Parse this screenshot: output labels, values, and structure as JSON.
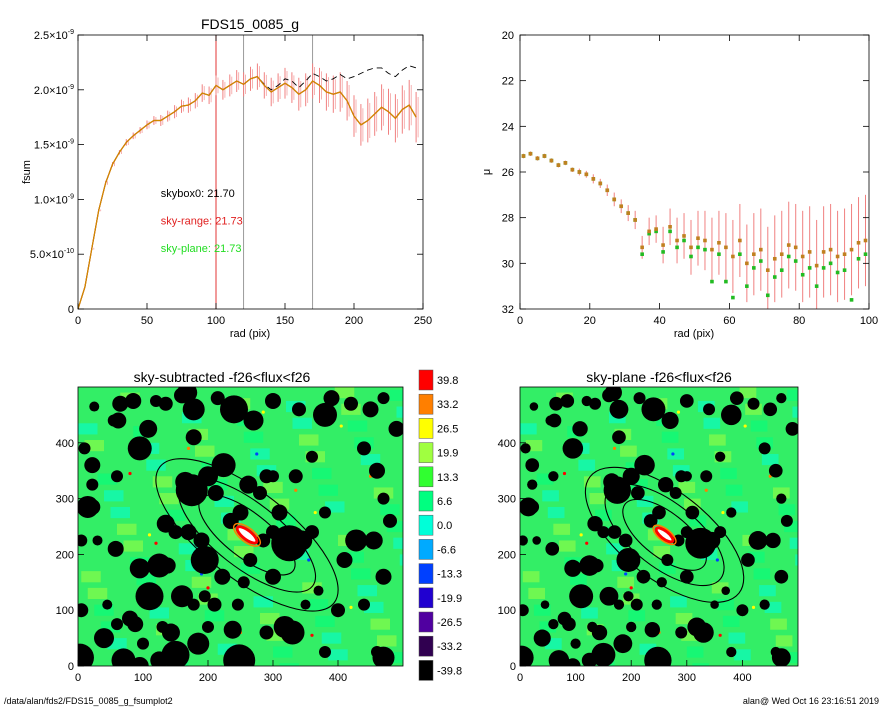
{
  "footer": {
    "path": "/data/alan/fds2/FDS15_0085_g_fsumplot2",
    "stamp": "alan@  Wed Oct 16 23:16:51 2019"
  },
  "chart_data": [
    {
      "type": "line",
      "panel": "fsum",
      "title": "FDS15_0085_g",
      "xlabel": "rad (pix)",
      "ylabel": "fsum",
      "xlim": [
        0,
        250
      ],
      "ylim": [
        0,
        2.5e-09
      ],
      "x_ticks": [
        "0",
        "50",
        "100",
        "150",
        "200",
        "250"
      ],
      "y_ticks": [
        {
          "v": 0,
          "m": "0",
          "e": ""
        },
        {
          "v": 5e-10,
          "m": "5.0×10",
          "e": "-10"
        },
        {
          "v": 1e-09,
          "m": "1.0×10",
          "e": "-9"
        },
        {
          "v": 1.5e-09,
          "m": "1.5×10",
          "e": "-9"
        },
        {
          "v": 2e-09,
          "m": "2.0×10",
          "e": "-9"
        },
        {
          "v": 2.5e-09,
          "m": "2.5×10",
          "e": "-9"
        }
      ],
      "vlines": [
        {
          "x": 100,
          "color": "#e02020"
        },
        {
          "x": 120,
          "color": "#909090"
        },
        {
          "x": 170,
          "color": "#909090"
        }
      ],
      "annotations": [
        {
          "text": "skybox0: 21.70",
          "color": "#000000",
          "x": 60,
          "y": 1.02e-09
        },
        {
          "text": "sky-range: 21.73",
          "color": "#e02020",
          "x": 60,
          "y": 7.7e-10
        },
        {
          "text": "sky-plane: 21.73",
          "color": "#22dd22",
          "x": 60,
          "y": 5.2e-10
        }
      ],
      "series": [
        {
          "style": "dashed",
          "color": "#000000",
          "x": [
            0,
            5,
            10,
            15,
            20,
            25,
            30,
            35,
            40,
            45,
            50,
            55,
            60,
            65,
            70,
            75,
            80,
            85,
            90,
            95,
            100,
            105,
            110,
            115,
            120,
            125,
            130,
            135,
            140,
            145,
            150,
            155,
            160,
            165,
            170,
            175,
            180,
            185,
            190,
            195,
            200,
            205,
            210,
            215,
            220,
            225,
            230,
            235,
            240,
            245
          ],
          "y": [
            0,
            2e-10,
            5.5e-10,
            9e-10,
            1.15e-09,
            1.32e-09,
            1.43e-09,
            1.52e-09,
            1.58e-09,
            1.63e-09,
            1.68e-09,
            1.72e-09,
            1.72e-09,
            1.76e-09,
            1.8e-09,
            1.85e-09,
            1.86e-09,
            1.9e-09,
            1.97e-09,
            1.95e-09,
            2.04e-09,
            2e-09,
            2.04e-09,
            2.08e-09,
            2.05e-09,
            2.1e-09,
            2.12e-09,
            2.05e-09,
            2e-09,
            2.04e-09,
            2.1e-09,
            2.08e-09,
            2.02e-09,
            2.08e-09,
            2.15e-09,
            2.12e-09,
            2.08e-09,
            2.1e-09,
            2.14e-09,
            2.1e-09,
            2.12e-09,
            2.15e-09,
            2.18e-09,
            2.2e-09,
            2.2e-09,
            2.15e-09,
            2.12e-09,
            2.18e-09,
            2.22e-09,
            2.2e-09
          ]
        },
        {
          "style": "solid",
          "color": "#cc2200",
          "x": [
            0,
            5,
            10,
            15,
            20,
            25,
            30,
            35,
            40,
            45,
            50,
            55,
            60,
            65,
            70,
            75,
            80,
            85,
            90,
            95,
            100,
            105,
            110,
            115,
            120,
            125,
            130,
            135,
            140,
            145,
            150,
            155,
            160,
            165,
            170,
            175,
            180,
            185,
            190,
            195,
            200,
            205,
            210,
            215,
            220,
            225,
            230,
            235,
            240,
            245
          ],
          "y": [
            0,
            2e-10,
            5.5e-10,
            9e-10,
            1.15e-09,
            1.32e-09,
            1.43e-09,
            1.52e-09,
            1.58e-09,
            1.63e-09,
            1.68e-09,
            1.72e-09,
            1.72e-09,
            1.76e-09,
            1.8e-09,
            1.85e-09,
            1.86e-09,
            1.9e-09,
            1.97e-09,
            1.95e-09,
            2.04e-09,
            2e-09,
            2.04e-09,
            2.08e-09,
            2.05e-09,
            2.1e-09,
            2.12e-09,
            2.04e-09,
            1.98e-09,
            2.02e-09,
            2.06e-09,
            2.02e-09,
            1.96e-09,
            2e-09,
            2.08e-09,
            2.04e-09,
            1.98e-09,
            1.96e-09,
            1.98e-09,
            1.9e-09,
            1.76e-09,
            1.68e-09,
            1.72e-09,
            1.78e-09,
            1.84e-09,
            1.8e-09,
            1.74e-09,
            1.82e-09,
            1.86e-09,
            1.75e-09
          ],
          "err": [
            0,
            0,
            1e-11,
            1e-11,
            2e-11,
            2e-11,
            2e-11,
            3e-11,
            3e-11,
            3e-11,
            4e-11,
            4e-11,
            5e-11,
            5e-11,
            6e-11,
            6e-11,
            7e-11,
            7e-11,
            8e-11,
            8e-11,
            9e-11,
            9e-11,
            1e-10,
            1e-10,
            1.1e-10,
            1.1e-10,
            1.2e-10,
            1.2e-10,
            1.3e-10,
            1.3e-10,
            1.4e-10,
            1.4e-10,
            1.5e-10,
            1.5e-10,
            1.6e-10,
            1.6e-10,
            1.7e-10,
            1.7e-10,
            1.8e-10,
            1.8e-10,
            1.9e-10,
            1.9e-10,
            2e-10,
            2e-10,
            2.1e-10,
            2.1e-10,
            2.2e-10,
            2.2e-10,
            2.3e-10,
            2.3e-10
          ]
        },
        {
          "style": "solid",
          "color": "#d08a00",
          "x": [
            0,
            5,
            10,
            15,
            20,
            25,
            30,
            35,
            40,
            45,
            50,
            55,
            60,
            65,
            70,
            75,
            80,
            85,
            90,
            95,
            100,
            105,
            110,
            115,
            120,
            125,
            130,
            135,
            140,
            145,
            150,
            155,
            160,
            165,
            170,
            175,
            180,
            185,
            190,
            195,
            200,
            205,
            210,
            215,
            220,
            225,
            230,
            235,
            240,
            245
          ],
          "y": [
            0,
            2e-10,
            5.5e-10,
            9e-10,
            1.15e-09,
            1.32e-09,
            1.43e-09,
            1.52e-09,
            1.58e-09,
            1.63e-09,
            1.68e-09,
            1.72e-09,
            1.72e-09,
            1.76e-09,
            1.8e-09,
            1.85e-09,
            1.86e-09,
            1.9e-09,
            1.97e-09,
            1.95e-09,
            2.04e-09,
            2e-09,
            2.04e-09,
            2.08e-09,
            2.05e-09,
            2.1e-09,
            2.12e-09,
            2.04e-09,
            1.98e-09,
            2.02e-09,
            2.06e-09,
            2.02e-09,
            1.96e-09,
            2e-09,
            2.08e-09,
            2.04e-09,
            1.98e-09,
            1.96e-09,
            1.98e-09,
            1.9e-09,
            1.76e-09,
            1.68e-09,
            1.72e-09,
            1.78e-09,
            1.84e-09,
            1.8e-09,
            1.74e-09,
            1.82e-09,
            1.86e-09,
            1.75e-09
          ]
        }
      ]
    },
    {
      "type": "scatter",
      "panel": "mu",
      "xlabel": "rad (pix)",
      "ylabel": "μ",
      "xlim": [
        0,
        100
      ],
      "ylim": [
        32,
        20
      ],
      "x_ticks": [
        "0",
        "20",
        "40",
        "60",
        "80",
        "100"
      ],
      "y_ticks": [
        "20",
        "22",
        "24",
        "26",
        "28",
        "30",
        "32"
      ],
      "series": [
        {
          "color": "#c08020",
          "x": [
            1,
            3,
            5,
            7,
            9,
            11,
            13,
            15,
            17,
            19,
            21,
            23,
            25,
            27,
            29,
            31,
            33,
            35,
            37,
            39,
            41,
            43,
            45,
            47,
            49,
            51,
            53,
            55,
            57,
            59,
            61,
            63,
            65,
            67,
            69,
            71,
            73,
            75,
            77,
            79,
            81,
            83,
            85,
            87,
            89,
            91,
            93,
            95,
            97,
            99
          ],
          "y": [
            25.3,
            25.2,
            25.4,
            25.3,
            25.5,
            25.7,
            25.6,
            25.9,
            26.0,
            26.1,
            26.3,
            26.5,
            26.8,
            27.2,
            27.5,
            27.8,
            28.1,
            29.3,
            28.6,
            28.5,
            29.2,
            28.4,
            29.0,
            28.8,
            29.3,
            28.9,
            29.0,
            29.4,
            29.1,
            29.3,
            29.7,
            29.0,
            30.0,
            29.6,
            29.4,
            30.3,
            29.8,
            29.6,
            29.2,
            29.3,
            29.7,
            29.5,
            30.1,
            29.5,
            29.4,
            29.7,
            29.6,
            29.4,
            29.1,
            29.0
          ],
          "err": [
            0.1,
            0.1,
            0.1,
            0.1,
            0.1,
            0.1,
            0.1,
            0.1,
            0.15,
            0.15,
            0.2,
            0.2,
            0.25,
            0.3,
            0.3,
            0.35,
            0.4,
            0.5,
            0.6,
            0.6,
            0.8,
            0.8,
            1.0,
            1.0,
            1.2,
            1.2,
            1.3,
            1.4,
            1.4,
            1.5,
            1.6,
            1.6,
            1.7,
            1.8,
            1.8,
            1.9,
            1.9,
            1.9,
            1.9,
            1.9,
            2.0,
            2.0,
            2.0,
            2.0,
            2.0,
            2.0,
            2.0,
            2.0,
            2.0,
            2.0
          ]
        },
        {
          "color": "#22bb22",
          "x": [
            1,
            3,
            5,
            7,
            9,
            11,
            13,
            15,
            17,
            19,
            21,
            23,
            25,
            27,
            29,
            31,
            33,
            35,
            37,
            39,
            41,
            43,
            45,
            47,
            49,
            51,
            53,
            55,
            57,
            59,
            61,
            63,
            65,
            67,
            69,
            71,
            73,
            75,
            77,
            79,
            81,
            83,
            85,
            87,
            89,
            91,
            93,
            95,
            97,
            99
          ],
          "y": [
            25.3,
            25.2,
            25.4,
            25.3,
            25.5,
            25.7,
            25.6,
            25.9,
            26.0,
            26.1,
            26.3,
            26.5,
            26.8,
            27.2,
            27.5,
            27.8,
            28.1,
            29.6,
            28.7,
            28.6,
            29.5,
            28.6,
            29.3,
            29.0,
            29.7,
            29.3,
            29.4,
            30.8,
            29.6,
            30.8,
            31.5,
            29.6,
            31.0,
            30.2,
            29.9,
            31.4,
            30.6,
            30.3,
            29.7,
            29.9,
            30.5,
            30.2,
            31.0,
            30.2,
            30.0,
            30.4,
            30.3,
            31.6,
            29.8,
            29.6
          ]
        }
      ]
    },
    {
      "type": "heatmap",
      "panel": "left-map",
      "title": "sky-subtracted -f26<flux<f26",
      "xlim": [
        0,
        500
      ],
      "ylim": [
        0,
        500
      ],
      "x_ticks": [
        "0",
        "100",
        "200",
        "300",
        "400"
      ],
      "y_ticks": [
        "0",
        "100",
        "200",
        "300",
        "400"
      ]
    },
    {
      "type": "heatmap",
      "panel": "right-map",
      "title": "sky-plane -f26<flux<f26",
      "xlim": [
        0,
        500
      ],
      "ylim": [
        0,
        500
      ],
      "x_ticks": [
        "0",
        "100",
        "200",
        "300",
        "400"
      ],
      "y_ticks": [
        "0",
        "100",
        "200",
        "300",
        "400"
      ]
    },
    {
      "type": "table",
      "panel": "colorbar",
      "labels": [
        "39.8",
        "33.2",
        "26.5",
        "19.9",
        "13.3",
        "6.6",
        "0.0",
        "-6.6",
        "-13.3",
        "-19.9",
        "-26.5",
        "-33.2",
        "-39.8"
      ],
      "colors": [
        "#ff0000",
        "#ff7f00",
        "#ffff00",
        "#a0ff40",
        "#30ff30",
        "#00ff80",
        "#00ffd8",
        "#00aaff",
        "#0040ff",
        "#2000d0",
        "#5000a0",
        "#300050",
        "#000000"
      ]
    }
  ]
}
